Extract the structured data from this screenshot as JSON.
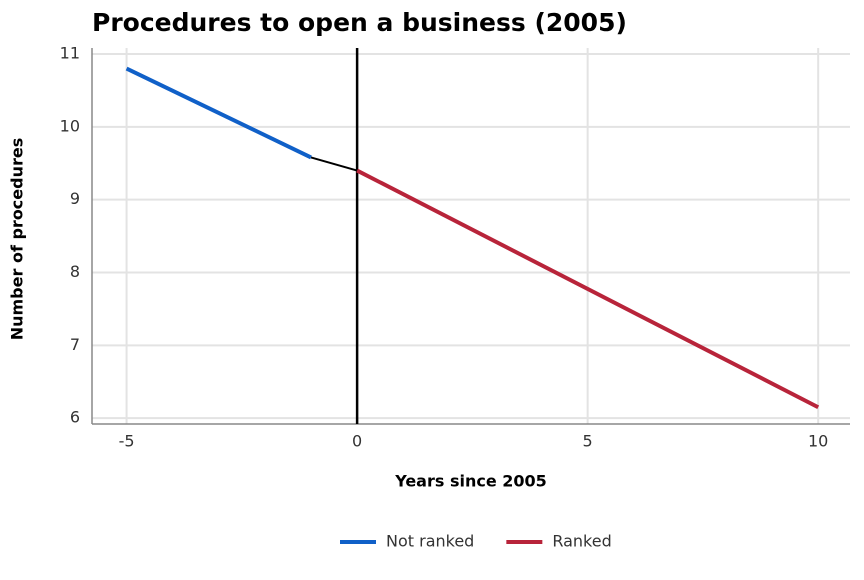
{
  "chart_data": {
    "type": "line",
    "title": "Procedures to open a business (2005)",
    "xlabel": "Years since 2005",
    "ylabel": "Number of procedures",
    "x": [
      -5,
      -1,
      0,
      10
    ],
    "series": [
      {
        "name": "Not ranked",
        "color": "#1060c8",
        "values": [
          10.8,
          9.58,
          null,
          null
        ]
      },
      {
        "color": "#000000",
        "values": [
          null,
          9.58,
          9.4,
          null
        ]
      },
      {
        "name": "Ranked",
        "color": "#b8243a",
        "values": [
          null,
          null,
          9.4,
          6.15
        ]
      }
    ],
    "vline": {
      "x": 0,
      "color": "#000000"
    },
    "xlim": [
      -5.75,
      10.69
    ],
    "xticks": [
      -5,
      0,
      5,
      10
    ],
    "ylim": [
      5.92,
      11.0
    ],
    "yticks": [
      6,
      7,
      8,
      9,
      10,
      11
    ],
    "grid": true,
    "legend": "bottom"
  }
}
